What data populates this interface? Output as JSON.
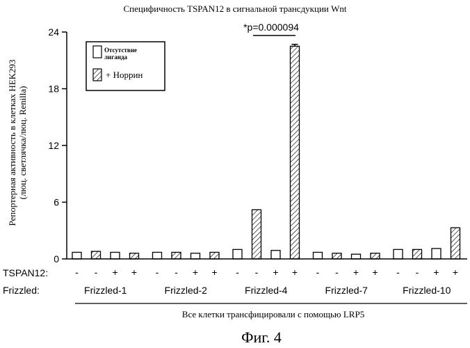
{
  "chart_data": {
    "type": "bar",
    "title": "Специфичность TSPAN12 в сигнальной трансдукции Wnt",
    "ylabel_line1": "Репортерная активность в клетках HEK293",
    "ylabel_line2": "(люц. светлячка/люц. Renilla)",
    "ylim": [
      0,
      24
    ],
    "yticks": [
      "0",
      "6",
      "12",
      "18",
      "24"
    ],
    "legend": {
      "placement": "top-left",
      "no_ligand": "Отсутствие лиганда",
      "norrin": "+ Норрин"
    },
    "tspan_label": "TSPAN12:",
    "frizzled_label": "Frizzled:",
    "tspan_signs": [
      "-",
      "-",
      "+",
      "+",
      "-",
      "-",
      "+",
      "+",
      "-",
      "-",
      "+",
      "+",
      "-",
      "-",
      "+",
      "+",
      "-",
      "-",
      "+",
      "+"
    ],
    "groups": [
      "Frizzled-1",
      "Frizzled-2",
      "Frizzled-4",
      "Frizzled-7",
      "Frizzled-10"
    ],
    "bars": [
      {
        "group": "Frizzled-1",
        "tspan12": "-",
        "ligand": "none",
        "value": 0.7
      },
      {
        "group": "Frizzled-1",
        "tspan12": "-",
        "ligand": "norrin",
        "value": 0.8
      },
      {
        "group": "Frizzled-1",
        "tspan12": "+",
        "ligand": "none",
        "value": 0.7
      },
      {
        "group": "Frizzled-1",
        "tspan12": "+",
        "ligand": "norrin",
        "value": 0.6
      },
      {
        "group": "Frizzled-2",
        "tspan12": "-",
        "ligand": "none",
        "value": 0.7
      },
      {
        "group": "Frizzled-2",
        "tspan12": "-",
        "ligand": "norrin",
        "value": 0.7
      },
      {
        "group": "Frizzled-2",
        "tspan12": "+",
        "ligand": "none",
        "value": 0.6
      },
      {
        "group": "Frizzled-2",
        "tspan12": "+",
        "ligand": "norrin",
        "value": 0.7
      },
      {
        "group": "Frizzled-4",
        "tspan12": "-",
        "ligand": "none",
        "value": 1.0
      },
      {
        "group": "Frizzled-4",
        "tspan12": "-",
        "ligand": "norrin",
        "value": 5.2
      },
      {
        "group": "Frizzled-4",
        "tspan12": "+",
        "ligand": "none",
        "value": 0.9
      },
      {
        "group": "Frizzled-4",
        "tspan12": "+",
        "ligand": "norrin",
        "value": 22.5,
        "error": 0.2
      },
      {
        "group": "Frizzled-7",
        "tspan12": "-",
        "ligand": "none",
        "value": 0.7
      },
      {
        "group": "Frizzled-7",
        "tspan12": "-",
        "ligand": "norrin",
        "value": 0.6
      },
      {
        "group": "Frizzled-7",
        "tspan12": "+",
        "ligand": "none",
        "value": 0.5
      },
      {
        "group": "Frizzled-7",
        "tspan12": "+",
        "ligand": "norrin",
        "value": 0.6
      },
      {
        "group": "Frizzled-10",
        "tspan12": "-",
        "ligand": "none",
        "value": 1.0
      },
      {
        "group": "Frizzled-10",
        "tspan12": "-",
        "ligand": "norrin",
        "value": 1.0
      },
      {
        "group": "Frizzled-10",
        "tspan12": "+",
        "ligand": "none",
        "value": 1.1
      },
      {
        "group": "Frizzled-10",
        "tspan12": "+",
        "ligand": "norrin",
        "value": 3.3
      }
    ],
    "annotation": "*p=0.000094",
    "footnote": "Все клетки трансфицировали с помощью LRP5"
  },
  "caption": "Фиг. 4"
}
